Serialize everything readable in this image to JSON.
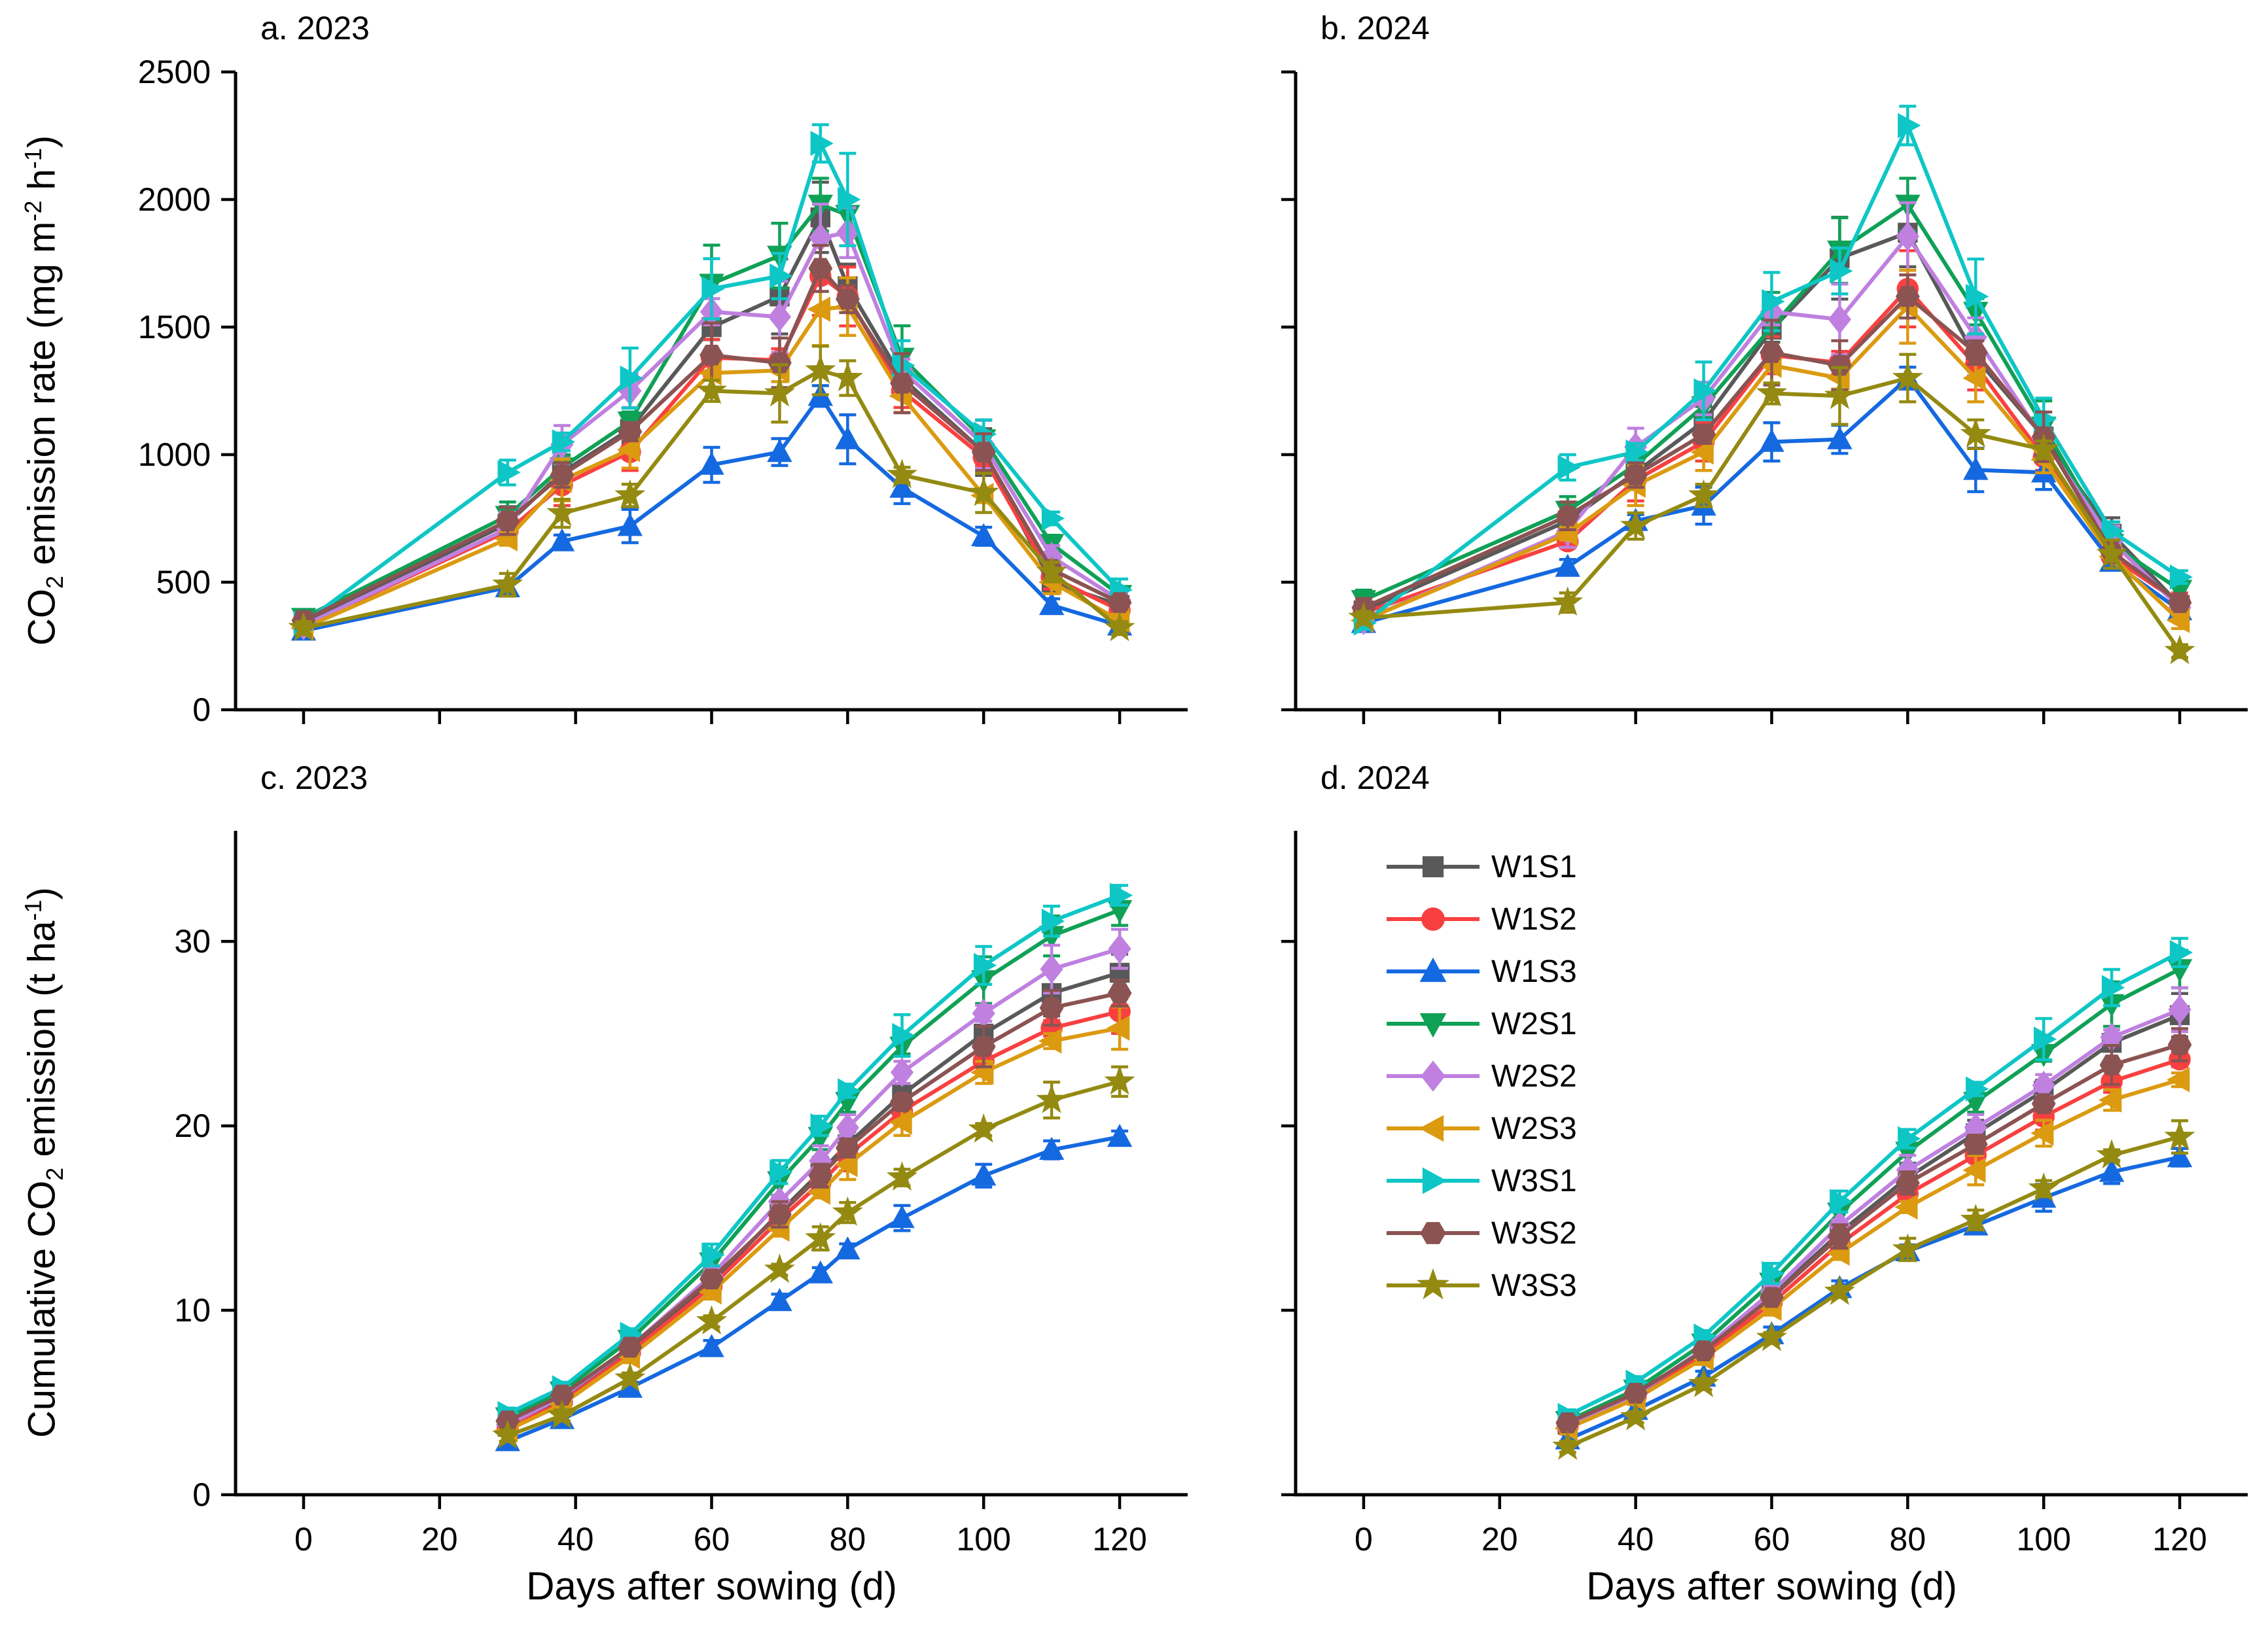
{
  "figure_background": "#ffffff",
  "axis_labels": {
    "top_y_segments": [
      {
        "t": "CO"
      },
      {
        "t": "2",
        "style": "sub"
      },
      {
        "t": " emission rate (mg m"
      },
      {
        "t": "-2",
        "style": "sup"
      },
      {
        "t": " h"
      },
      {
        "t": "-1",
        "style": "sup"
      },
      {
        "t": ")"
      }
    ],
    "bottom_y_segments": [
      {
        "t": "Cumulative CO"
      },
      {
        "t": "2",
        "style": "sub"
      },
      {
        "t": " emission (t ha"
      },
      {
        "t": "-1",
        "style": "sup"
      },
      {
        "t": ")"
      }
    ],
    "x_left": "Days after sowing (d)",
    "x_right": "Days after sowing (d)"
  },
  "legend": {
    "position": "panel-d-top-left",
    "entries": [
      {
        "label": "W1S1",
        "marker": "square",
        "color": "#595959"
      },
      {
        "label": "W1S2",
        "marker": "circle",
        "color": "#F94040"
      },
      {
        "label": "W1S3",
        "marker": "triangle-up",
        "color": "#1569E0"
      },
      {
        "label": "W2S1",
        "marker": "triangle-down",
        "color": "#0FA156"
      },
      {
        "label": "W2S2",
        "marker": "diamond",
        "color": "#BF80E0"
      },
      {
        "label": "W2S3",
        "marker": "triangle-left",
        "color": "#DB9A10"
      },
      {
        "label": "W3S1",
        "marker": "triangle-right",
        "color": "#0EC6C6"
      },
      {
        "label": "W3S2",
        "marker": "hexagon",
        "color": "#8B5352"
      },
      {
        "label": "W3S3",
        "marker": "star",
        "color": "#948A11"
      }
    ]
  },
  "chart_data": [
    {
      "id": "a",
      "type": "line",
      "title": "a. 2023",
      "ylabel": "CO2 emission rate (mg m-2 h-1)",
      "xlabel": "Days after sowing (d)",
      "xlim": [
        -10,
        130
      ],
      "ylim": [
        0,
        2500
      ],
      "xticks": [
        0,
        20,
        40,
        60,
        80,
        100,
        120
      ],
      "yticks": [
        0,
        500,
        1000,
        1500,
        2000,
        2500
      ],
      "show_xtick_labels": false,
      "show_ytick_labels": true,
      "error_fraction": 0.06,
      "error_min": 25,
      "x": [
        0,
        30,
        38,
        48,
        60,
        70,
        76,
        80,
        88,
        100,
        110,
        120
      ],
      "series": [
        {
          "name": "W1S1",
          "values": [
            340,
            730,
            930,
            1100,
            1500,
            1620,
            1930,
            1660,
            1300,
            1010,
            500,
            410
          ]
        },
        {
          "name": "W1S2",
          "values": [
            330,
            700,
            880,
            1010,
            1380,
            1370,
            1700,
            1620,
            1250,
            990,
            520,
            390
          ]
        },
        {
          "name": "W1S3",
          "values": [
            310,
            480,
            660,
            720,
            960,
            1010,
            1230,
            1060,
            870,
            680,
            410,
            330
          ]
        },
        {
          "name": "W2S1",
          "values": [
            360,
            760,
            950,
            1130,
            1670,
            1780,
            1980,
            1940,
            1380,
            1060,
            650,
            450
          ]
        },
        {
          "name": "W2S2",
          "values": [
            330,
            710,
            1040,
            1250,
            1560,
            1540,
            1850,
            1870,
            1330,
            1040,
            600,
            430
          ]
        },
        {
          "name": "W2S3",
          "values": [
            320,
            670,
            900,
            1020,
            1320,
            1330,
            1570,
            1580,
            1230,
            840,
            500,
            350
          ]
        },
        {
          "name": "W3S1",
          "values": [
            340,
            930,
            1050,
            1300,
            1650,
            1700,
            2220,
            2000,
            1350,
            1080,
            750,
            470
          ]
        },
        {
          "name": "W3S2",
          "values": [
            350,
            740,
            920,
            1090,
            1390,
            1360,
            1730,
            1610,
            1280,
            1010,
            550,
            420
          ]
        },
        {
          "name": "W3S3",
          "values": [
            320,
            490,
            770,
            840,
            1250,
            1240,
            1330,
            1300,
            920,
            850,
            540,
            320
          ]
        }
      ]
    },
    {
      "id": "b",
      "type": "line",
      "title": "b. 2024",
      "ylabel": "CO2 emission rate (mg m-2 h-1)",
      "xlabel": "Days after sowing (d)",
      "xlim": [
        -10,
        130
      ],
      "ylim": [
        0,
        2500
      ],
      "xticks": [
        0,
        20,
        40,
        60,
        80,
        100,
        120
      ],
      "yticks": [
        0,
        500,
        1000,
        1500,
        2000,
        2500
      ],
      "show_xtick_labels": false,
      "show_ytick_labels": false,
      "error_fraction": 0.06,
      "error_min": 25,
      "x": [
        0,
        30,
        40,
        50,
        60,
        70,
        80,
        90,
        100,
        110,
        120
      ],
      "series": [
        {
          "name": "W1S1",
          "values": [
            390,
            740,
            930,
            1130,
            1490,
            1770,
            1870,
            1380,
            1070,
            690,
            410
          ]
        },
        {
          "name": "W1S2",
          "values": [
            380,
            660,
            900,
            1050,
            1390,
            1360,
            1650,
            1350,
            990,
            600,
            420
          ]
        },
        {
          "name": "W1S3",
          "values": [
            340,
            560,
            740,
            800,
            1050,
            1060,
            1300,
            940,
            930,
            580,
            390
          ]
        },
        {
          "name": "W2S1",
          "values": [
            430,
            780,
            960,
            1190,
            1500,
            1800,
            1980,
            1560,
            1110,
            650,
            470
          ]
        },
        {
          "name": "W2S2",
          "values": [
            350,
            700,
            1030,
            1220,
            1560,
            1530,
            1855,
            1460,
            1060,
            660,
            400
          ]
        },
        {
          "name": "W2S3",
          "values": [
            350,
            690,
            880,
            1010,
            1350,
            1300,
            1580,
            1300,
            980,
            600,
            350
          ]
        },
        {
          "name": "W3S1",
          "values": [
            340,
            950,
            1010,
            1250,
            1600,
            1720,
            2290,
            1620,
            1140,
            700,
            520
          ]
        },
        {
          "name": "W3S2",
          "values": [
            400,
            760,
            920,
            1080,
            1400,
            1350,
            1620,
            1400,
            1070,
            620,
            420
          ]
        },
        {
          "name": "W3S3",
          "values": [
            360,
            420,
            720,
            840,
            1240,
            1230,
            1300,
            1080,
            1020,
            610,
            230
          ]
        }
      ]
    },
    {
      "id": "c",
      "type": "line",
      "title": "c. 2023",
      "ylabel": "Cumulative CO2 emission (t ha-1)",
      "xlabel": "Days after sowing (d)",
      "xlim": [
        -10,
        130
      ],
      "ylim": [
        0,
        36
      ],
      "xticks": [
        0,
        20,
        40,
        60,
        80,
        100,
        120
      ],
      "yticks": [
        0,
        10,
        20,
        30
      ],
      "show_xtick_labels": true,
      "show_ytick_labels": true,
      "error_fraction": 0.03,
      "error_min": 0.3,
      "x": [
        30,
        38,
        48,
        60,
        70,
        76,
        80,
        88,
        100,
        110,
        120
      ],
      "series": [
        {
          "name": "W1S1",
          "values": [
            3.7,
            5.1,
            7.8,
            11.5,
            15.3,
            17.5,
            19.0,
            21.7,
            25.0,
            27.2,
            28.3
          ]
        },
        {
          "name": "W1S2",
          "values": [
            3.6,
            5.0,
            7.7,
            11.3,
            14.9,
            16.9,
            18.4,
            20.8,
            23.5,
            25.3,
            26.2
          ]
        },
        {
          "name": "W1S3",
          "values": [
            2.9,
            4.1,
            5.8,
            8.0,
            10.5,
            12.0,
            13.3,
            15.0,
            17.3,
            18.7,
            19.4
          ]
        },
        {
          "name": "W2S1",
          "values": [
            4.2,
            5.6,
            8.4,
            12.6,
            17.0,
            19.4,
            21.3,
            24.3,
            27.9,
            30.3,
            31.7
          ]
        },
        {
          "name": "W2S2",
          "values": [
            3.8,
            5.3,
            8.0,
            11.9,
            15.9,
            18.1,
            19.9,
            22.9,
            26.1,
            28.5,
            29.6
          ]
        },
        {
          "name": "W2S3",
          "values": [
            3.5,
            4.9,
            7.5,
            11.0,
            14.4,
            16.4,
            17.9,
            20.2,
            22.9,
            24.6,
            25.3
          ]
        },
        {
          "name": "W3S1",
          "values": [
            4.4,
            5.8,
            8.7,
            13.0,
            17.5,
            20.0,
            21.9,
            24.9,
            28.7,
            31.1,
            32.5
          ]
        },
        {
          "name": "W3S2",
          "values": [
            4.0,
            5.4,
            8.0,
            11.7,
            15.2,
            17.3,
            18.8,
            21.3,
            24.3,
            26.4,
            27.2
          ]
        },
        {
          "name": "W3S3",
          "values": [
            3.2,
            4.3,
            6.3,
            9.4,
            12.2,
            13.9,
            15.3,
            17.2,
            19.8,
            21.4,
            22.4
          ]
        }
      ]
    },
    {
      "id": "d",
      "type": "line",
      "title": "d. 2024",
      "ylabel": "Cumulative CO2 emission (t ha-1)",
      "xlabel": "Days after sowing (d)",
      "xlim": [
        -10,
        130
      ],
      "ylim": [
        0,
        36
      ],
      "xticks": [
        0,
        20,
        40,
        60,
        80,
        100,
        120
      ],
      "yticks": [
        0,
        10,
        20,
        30
      ],
      "show_xtick_labels": true,
      "show_ytick_labels": false,
      "error_fraction": 0.03,
      "error_min": 0.3,
      "x": [
        30,
        40,
        50,
        60,
        70,
        80,
        90,
        100,
        110,
        120
      ],
      "series": [
        {
          "name": "W1S1",
          "values": [
            3.8,
            5.5,
            7.8,
            10.8,
            14.2,
            17.2,
            19.6,
            21.9,
            24.5,
            26.0
          ]
        },
        {
          "name": "W1S2",
          "values": [
            3.7,
            5.3,
            7.6,
            10.4,
            13.6,
            16.3,
            18.4,
            20.5,
            22.4,
            23.6
          ]
        },
        {
          "name": "W1S3",
          "values": [
            3.0,
            4.6,
            6.4,
            8.7,
            11.2,
            13.2,
            14.6,
            16.1,
            17.5,
            18.3
          ]
        },
        {
          "name": "W2S1",
          "values": [
            4.0,
            5.7,
            8.2,
            11.5,
            15.3,
            18.6,
            21.3,
            23.9,
            26.6,
            28.5
          ]
        },
        {
          "name": "W2S2",
          "values": [
            3.8,
            5.4,
            7.9,
            11.0,
            14.6,
            17.6,
            19.9,
            22.2,
            24.8,
            26.3
          ]
        },
        {
          "name": "W2S3",
          "values": [
            3.6,
            5.2,
            7.4,
            10.1,
            13.1,
            15.6,
            17.6,
            19.6,
            21.4,
            22.5
          ]
        },
        {
          "name": "W3S1",
          "values": [
            4.3,
            6.1,
            8.6,
            12.0,
            15.9,
            19.3,
            22.0,
            24.7,
            27.5,
            29.4
          ]
        },
        {
          "name": "W3S2",
          "values": [
            3.9,
            5.5,
            7.8,
            10.7,
            14.0,
            16.9,
            19.0,
            21.2,
            23.3,
            24.4
          ]
        },
        {
          "name": "W3S3",
          "values": [
            2.6,
            4.2,
            6.0,
            8.5,
            11.0,
            13.3,
            14.9,
            16.6,
            18.4,
            19.4
          ]
        }
      ]
    }
  ]
}
